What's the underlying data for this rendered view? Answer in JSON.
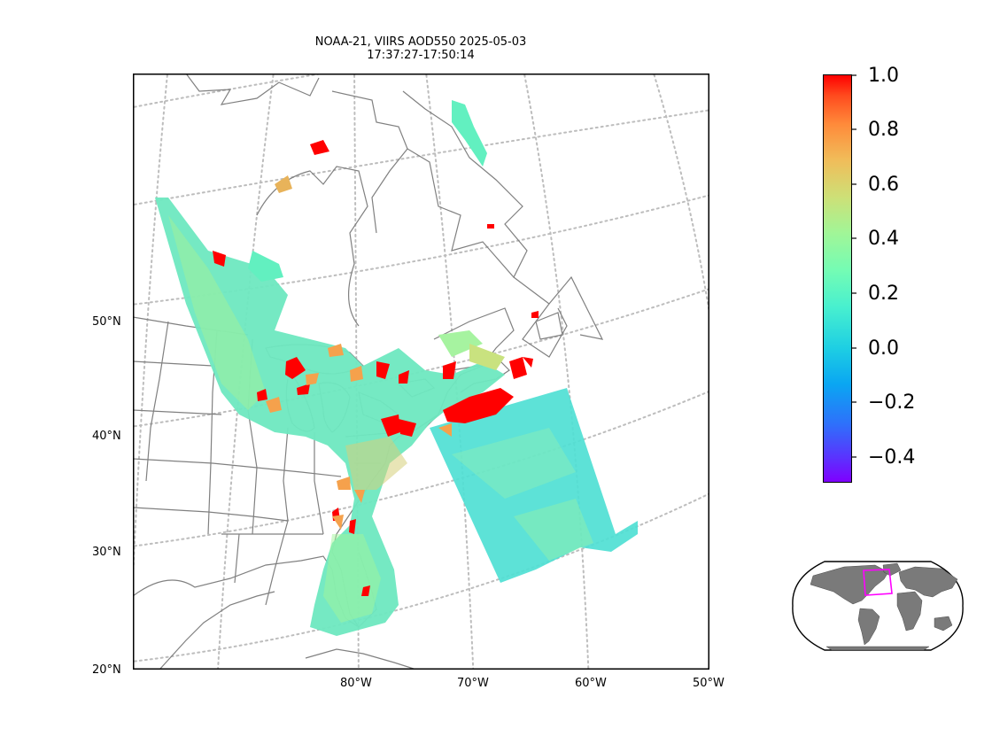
{
  "title": {
    "line1": "NOAA-21, VIIRS AOD550 2025-05-03",
    "line2": "17:37:27-17:50:14"
  },
  "axes": {
    "lat_labels": [
      "50°N",
      "40°N",
      "30°N",
      "20°N"
    ],
    "lon_labels": [
      "80°W",
      "70°W",
      "60°W",
      "50°W"
    ]
  },
  "colorbar": {
    "colormap": "rainbow",
    "range": [
      -0.5,
      1.0
    ],
    "ticks": [
      "1.0",
      "0.8",
      "0.6",
      "0.4",
      "0.2",
      "0.0",
      "−0.2",
      "−0.4"
    ]
  },
  "colors": {
    "coastline": "#808080",
    "gridline": "#bdbdbd",
    "inset_land": "#7a7a7a",
    "inset_box": "#ff00ff",
    "high_aod": "#ff0000"
  },
  "map": {
    "projection": "lambert-conformal",
    "region": "Eastern North America / Northwest Atlantic",
    "inset": "global-overview-robinson"
  }
}
